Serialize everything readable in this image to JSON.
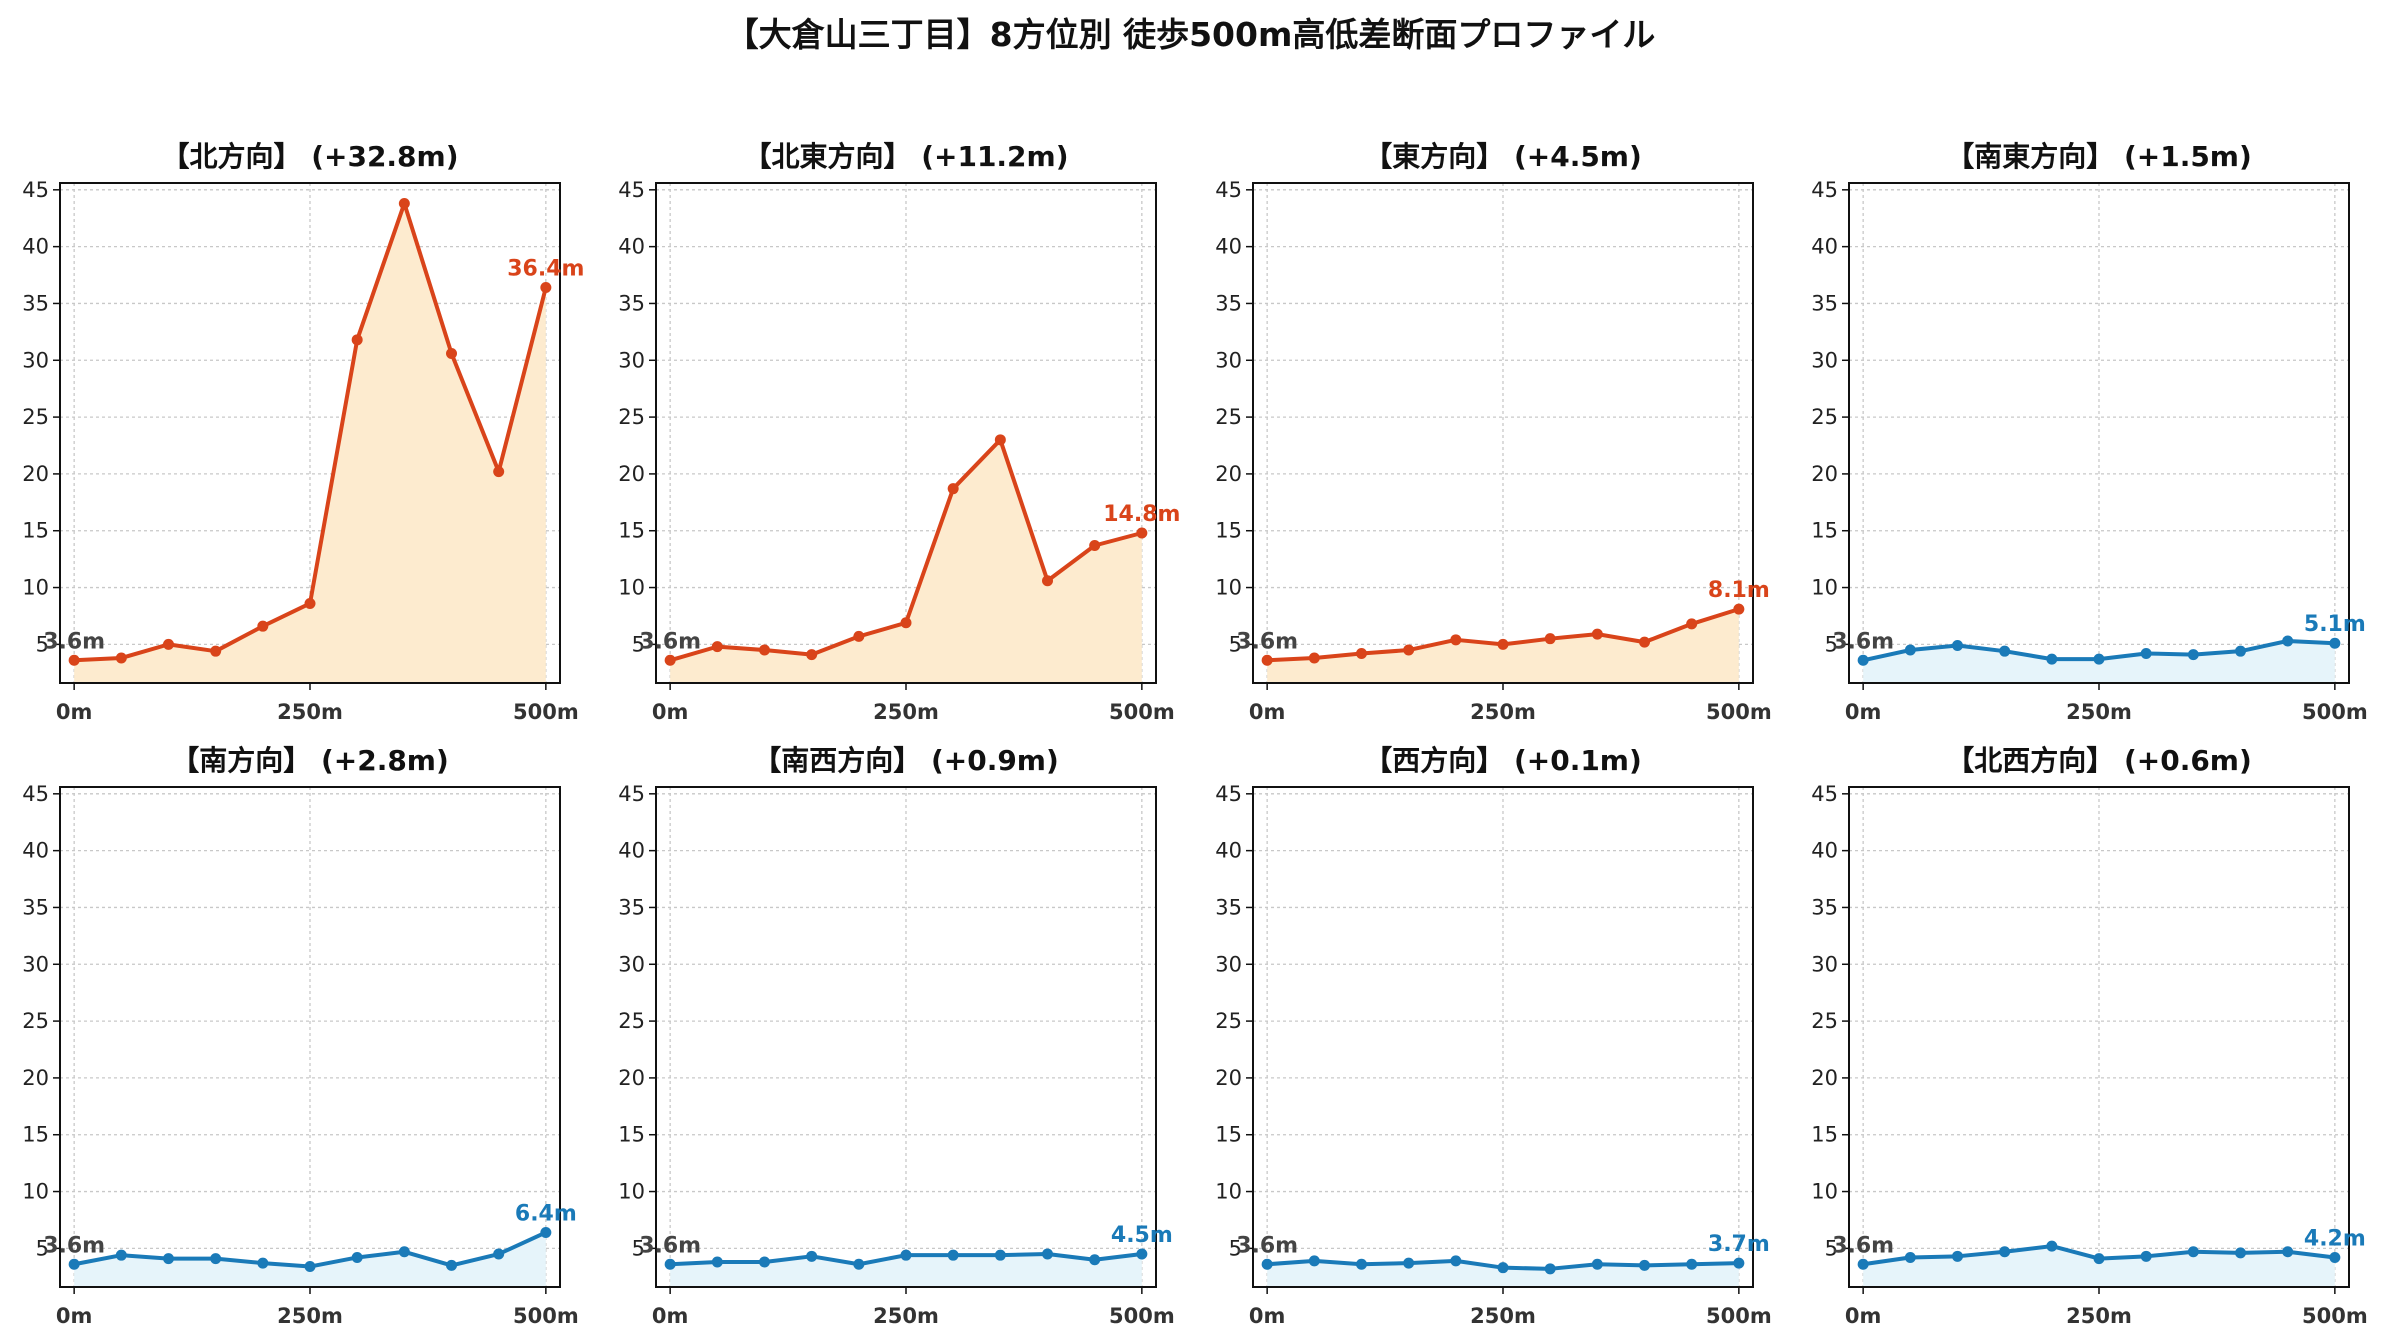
{
  "title": "【大倉山三丁目】8方位別 徒歩500m高低差断面プロファイル",
  "colors": {
    "up_line": "#d9441a",
    "up_fill": "#fdebcf",
    "down_line": "#1a7ab8",
    "down_fill": "#e6f4fa",
    "start_label": "#444444",
    "grid": "#c8c8c8"
  },
  "chart_data": [
    {
      "type": "area",
      "title": "【北方向】 (+32.8m)",
      "x": [
        0,
        50,
        100,
        150,
        200,
        250,
        300,
        350,
        400,
        450,
        500
      ],
      "values": [
        3.6,
        3.8,
        5.0,
        4.4,
        6.6,
        8.6,
        31.8,
        43.8,
        30.6,
        20.2,
        36.4
      ],
      "tone": "up",
      "start_label": "3.6m",
      "end_label": "36.4m",
      "xticks": [
        "0m",
        "250m",
        "500m"
      ],
      "xtick_values": [
        0,
        250,
        500
      ],
      "yticks": [
        "5",
        "10",
        "15",
        "20",
        "25",
        "30",
        "35",
        "40",
        "45"
      ],
      "ytick_values": [
        5,
        10,
        15,
        20,
        25,
        30,
        35,
        40,
        45
      ],
      "xlim": [
        -15,
        515
      ],
      "ylim": [
        1.6,
        45.6
      ],
      "grid": true
    },
    {
      "type": "area",
      "title": "【北東方向】 (+11.2m)",
      "x": [
        0,
        50,
        100,
        150,
        200,
        250,
        300,
        350,
        400,
        450,
        500
      ],
      "values": [
        3.6,
        4.8,
        4.5,
        4.1,
        5.7,
        6.9,
        18.7,
        23.0,
        10.6,
        13.7,
        14.8
      ],
      "tone": "up",
      "start_label": "3.6m",
      "end_label": "14.8m",
      "xticks": [
        "0m",
        "250m",
        "500m"
      ],
      "xtick_values": [
        0,
        250,
        500
      ],
      "yticks": [
        "5",
        "10",
        "15",
        "20",
        "25",
        "30",
        "35",
        "40",
        "45"
      ],
      "ytick_values": [
        5,
        10,
        15,
        20,
        25,
        30,
        35,
        40,
        45
      ],
      "xlim": [
        -15,
        515
      ],
      "ylim": [
        1.6,
        45.6
      ],
      "grid": true
    },
    {
      "type": "area",
      "title": "【東方向】 (+4.5m)",
      "x": [
        0,
        50,
        100,
        150,
        200,
        250,
        300,
        350,
        400,
        450,
        500
      ],
      "values": [
        3.6,
        3.8,
        4.2,
        4.5,
        5.4,
        5.0,
        5.5,
        5.9,
        5.2,
        6.8,
        8.1
      ],
      "tone": "up",
      "start_label": "3.6m",
      "end_label": "8.1m",
      "xticks": [
        "0m",
        "250m",
        "500m"
      ],
      "xtick_values": [
        0,
        250,
        500
      ],
      "yticks": [
        "5",
        "10",
        "15",
        "20",
        "25",
        "30",
        "35",
        "40",
        "45"
      ],
      "ytick_values": [
        5,
        10,
        15,
        20,
        25,
        30,
        35,
        40,
        45
      ],
      "xlim": [
        -15,
        515
      ],
      "ylim": [
        1.6,
        45.6
      ],
      "grid": true
    },
    {
      "type": "area",
      "title": "【南東方向】 (+1.5m)",
      "x": [
        0,
        50,
        100,
        150,
        200,
        250,
        300,
        350,
        400,
        450,
        500
      ],
      "values": [
        3.6,
        4.5,
        4.9,
        4.4,
        3.7,
        3.7,
        4.2,
        4.1,
        4.4,
        5.3,
        5.1
      ],
      "tone": "down",
      "start_label": "3.6m",
      "end_label": "5.1m",
      "xticks": [
        "0m",
        "250m",
        "500m"
      ],
      "xtick_values": [
        0,
        250,
        500
      ],
      "yticks": [
        "5",
        "10",
        "15",
        "20",
        "25",
        "30",
        "35",
        "40",
        "45"
      ],
      "ytick_values": [
        5,
        10,
        15,
        20,
        25,
        30,
        35,
        40,
        45
      ],
      "xlim": [
        -15,
        515
      ],
      "ylim": [
        1.6,
        45.6
      ],
      "grid": true
    },
    {
      "type": "area",
      "title": "【南方向】 (+2.8m)",
      "x": [
        0,
        50,
        100,
        150,
        200,
        250,
        300,
        350,
        400,
        450,
        500
      ],
      "values": [
        3.6,
        4.4,
        4.1,
        4.1,
        3.7,
        3.4,
        4.2,
        4.7,
        3.5,
        4.5,
        6.4
      ],
      "tone": "down",
      "start_label": "3.6m",
      "end_label": "6.4m",
      "xticks": [
        "0m",
        "250m",
        "500m"
      ],
      "xtick_values": [
        0,
        250,
        500
      ],
      "yticks": [
        "5",
        "10",
        "15",
        "20",
        "25",
        "30",
        "35",
        "40",
        "45"
      ],
      "ytick_values": [
        5,
        10,
        15,
        20,
        25,
        30,
        35,
        40,
        45
      ],
      "xlim": [
        -15,
        515
      ],
      "ylim": [
        1.6,
        45.6
      ],
      "grid": true
    },
    {
      "type": "area",
      "title": "【南西方向】 (+0.9m)",
      "x": [
        0,
        50,
        100,
        150,
        200,
        250,
        300,
        350,
        400,
        450,
        500
      ],
      "values": [
        3.6,
        3.8,
        3.8,
        4.3,
        3.6,
        4.4,
        4.4,
        4.4,
        4.5,
        4.0,
        4.5
      ],
      "tone": "down",
      "start_label": "3.6m",
      "end_label": "4.5m",
      "xticks": [
        "0m",
        "250m",
        "500m"
      ],
      "xtick_values": [
        0,
        250,
        500
      ],
      "yticks": [
        "5",
        "10",
        "15",
        "20",
        "25",
        "30",
        "35",
        "40",
        "45"
      ],
      "ytick_values": [
        5,
        10,
        15,
        20,
        25,
        30,
        35,
        40,
        45
      ],
      "xlim": [
        -15,
        515
      ],
      "ylim": [
        1.6,
        45.6
      ],
      "grid": true
    },
    {
      "type": "area",
      "title": "【西方向】 (+0.1m)",
      "x": [
        0,
        50,
        100,
        150,
        200,
        250,
        300,
        350,
        400,
        450,
        500
      ],
      "values": [
        3.6,
        3.9,
        3.6,
        3.7,
        3.9,
        3.3,
        3.2,
        3.6,
        3.5,
        3.6,
        3.7
      ],
      "tone": "down",
      "start_label": "3.6m",
      "end_label": "3.7m",
      "xticks": [
        "0m",
        "250m",
        "500m"
      ],
      "xtick_values": [
        0,
        250,
        500
      ],
      "yticks": [
        "5",
        "10",
        "15",
        "20",
        "25",
        "30",
        "35",
        "40",
        "45"
      ],
      "ytick_values": [
        5,
        10,
        15,
        20,
        25,
        30,
        35,
        40,
        45
      ],
      "xlim": [
        -15,
        515
      ],
      "ylim": [
        1.6,
        45.6
      ],
      "grid": true
    },
    {
      "type": "area",
      "title": "【北西方向】 (+0.6m)",
      "x": [
        0,
        50,
        100,
        150,
        200,
        250,
        300,
        350,
        400,
        450,
        500
      ],
      "values": [
        3.6,
        4.2,
        4.3,
        4.7,
        5.2,
        4.1,
        4.3,
        4.7,
        4.6,
        4.7,
        4.2
      ],
      "tone": "down",
      "start_label": "3.6m",
      "end_label": "4.2m",
      "xticks": [
        "0m",
        "250m",
        "500m"
      ],
      "xtick_values": [
        0,
        250,
        500
      ],
      "yticks": [
        "5",
        "10",
        "15",
        "20",
        "25",
        "30",
        "35",
        "40",
        "45"
      ],
      "ytick_values": [
        5,
        10,
        15,
        20,
        25,
        30,
        35,
        40,
        45
      ],
      "xlim": [
        -15,
        515
      ],
      "ylim": [
        1.6,
        45.6
      ],
      "grid": true
    }
  ]
}
